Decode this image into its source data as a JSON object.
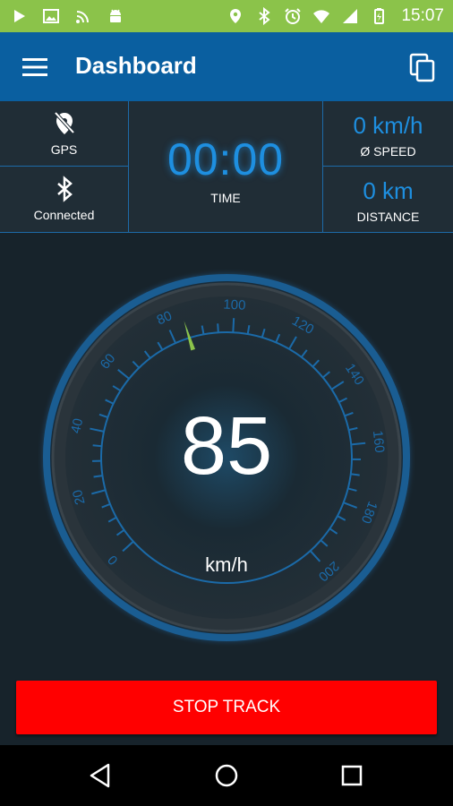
{
  "status_bar": {
    "time": "15:07",
    "left_icons": [
      "play-icon",
      "image-icon",
      "wifi-signal-icon",
      "android-icon"
    ],
    "right_icons": [
      "location-icon",
      "bluetooth-icon",
      "alarm-icon",
      "wifi-icon",
      "cell-signal-icon",
      "battery-icon"
    ],
    "color": "#8bc34a"
  },
  "app_bar": {
    "title": "Dashboard",
    "color": "#0a5fa0"
  },
  "stats": {
    "gps_label": "GPS",
    "bluetooth_label": "Connected",
    "time_value": "00:00",
    "time_label": "TIME",
    "avg_speed_value": "0 km/h",
    "avg_speed_label": "Ø SPEED",
    "distance_value": "0 km",
    "distance_label": "DISTANCE",
    "accent_color": "#1e8fe0"
  },
  "gauge": {
    "speed": "85",
    "unit": "km/h",
    "needle_value": 85,
    "min": 0,
    "max": 200,
    "tick_labels": [
      "0",
      "20",
      "40",
      "60",
      "80",
      "100",
      "120",
      "140",
      "160",
      "180",
      "200"
    ],
    "needle_color": "#8bc34a"
  },
  "actions": {
    "stop_label": "STOP TRACK",
    "stop_color": "#ff0000"
  },
  "nav_bar": {
    "icons": [
      "back-icon",
      "home-icon",
      "recents-icon"
    ]
  }
}
